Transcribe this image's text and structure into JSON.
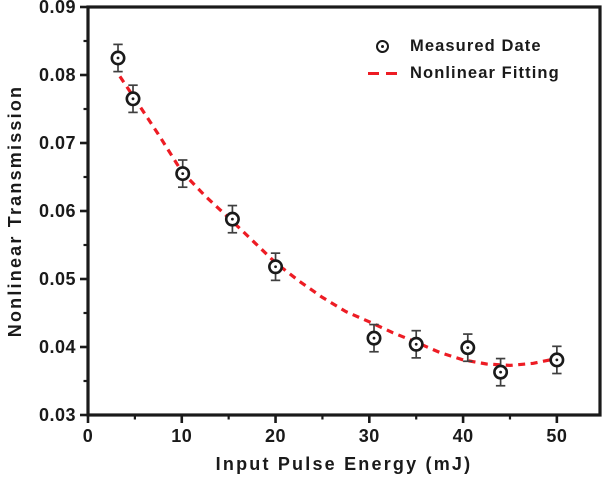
{
  "window": {
    "background": "#ffffff"
  },
  "chart_data": {
    "type": "scatter",
    "title": "",
    "xlabel": "Input Pulse Energy (mJ)",
    "ylabel": "Nonlinear Transmission",
    "xlim": [
      0,
      54.6
    ],
    "ylim": [
      0.03,
      0.09
    ],
    "grid": false,
    "legend_position": "upper right",
    "axis_color": "#1a1a1a",
    "x_major_ticks": [
      {
        "v": 0,
        "label": "0"
      },
      {
        "v": 10,
        "label": "10"
      },
      {
        "v": 20,
        "label": "20"
      },
      {
        "v": 30,
        "label": "30"
      },
      {
        "v": 40,
        "label": "40"
      },
      {
        "v": 50,
        "label": "50"
      }
    ],
    "x_minor_ticks": [
      5,
      15,
      25,
      35,
      45
    ],
    "y_major_ticks": [
      {
        "v": 0.09,
        "label": "0.09"
      },
      {
        "v": 0.08,
        "label": "0.08"
      },
      {
        "v": 0.07,
        "label": "0.07"
      },
      {
        "v": 0.06,
        "label": "0.06"
      },
      {
        "v": 0.05,
        "label": "0.05"
      },
      {
        "v": 0.04,
        "label": "0.04"
      },
      {
        "v": 0.03,
        "label": "0.03"
      }
    ],
    "y_minor_ticks": [
      0.085,
      0.075,
      0.065,
      0.055,
      0.045,
      0.035
    ],
    "series": [
      {
        "name": "Measured Date",
        "type": "scatter",
        "marker": "open-circle-with-dot",
        "color": "#1a1a1a",
        "error_color": "#3f3f3f",
        "x": [
          3.2,
          4.8,
          10.1,
          15.4,
          20,
          30.5,
          35,
          40.5,
          44,
          50
        ],
        "y": [
          0.0825,
          0.0765,
          0.0655,
          0.0588,
          0.0518,
          0.0413,
          0.0404,
          0.0399,
          0.0363,
          0.0381
        ],
        "yerr": 0.002
      },
      {
        "name": "Nonlinear Fitting",
        "type": "line",
        "style": "dashed",
        "color": "#ed1c24",
        "x": [
          3.4,
          5,
          7.5,
          10,
          12.5,
          15,
          17.5,
          20,
          22.5,
          25,
          27.5,
          30,
          32.5,
          35,
          37.5,
          40,
          42.5,
          45,
          47.5,
          50.3
        ],
        "y": [
          0.0798,
          0.0765,
          0.0713,
          0.0658,
          0.0622,
          0.059,
          0.0557,
          0.0524,
          0.0497,
          0.0473,
          0.0452,
          0.0437,
          0.0421,
          0.0407,
          0.0392,
          0.0381,
          0.0375,
          0.0373,
          0.0376,
          0.0384
        ]
      }
    ],
    "legend": [
      {
        "label": "Measured Date",
        "marker": "open-circle"
      },
      {
        "label": "Nonlinear Fitting",
        "marker": "red-dashes"
      }
    ]
  }
}
